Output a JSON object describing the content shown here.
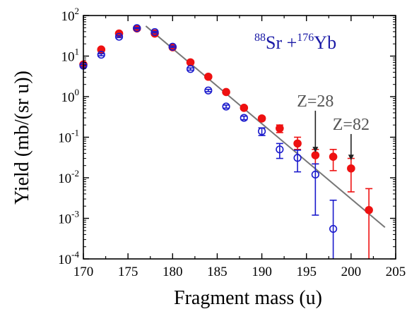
{
  "chart_data": {
    "type": "scatter",
    "xlabel": "Fragment mass (u)",
    "ylabel": "Yield (mb/(sr u))",
    "reaction": {
      "mass1": "88",
      "elem1": "Sr",
      "plus": " +",
      "mass2": "176",
      "elem2": "Yb",
      "color": "#1a1aa6"
    },
    "xlim": [
      170,
      205
    ],
    "ylim_log10": [
      -4,
      2
    ],
    "x_ticks": [
      170,
      175,
      180,
      185,
      190,
      195,
      200,
      205
    ],
    "x_tick_labels": [
      "170",
      "175",
      "180",
      "185",
      "190",
      "195",
      "200",
      "205"
    ],
    "y_ticks": [
      {
        "base": "10",
        "exp": "2",
        "value": 100
      },
      {
        "base": "10",
        "exp": "1",
        "value": 10
      },
      {
        "base": "10",
        "exp": "0",
        "value": 1
      },
      {
        "base": "10",
        "exp": "-1",
        "value": 0.1
      },
      {
        "base": "10",
        "exp": "-2",
        "value": 0.01
      },
      {
        "base": "10",
        "exp": "-3",
        "value": 0.001
      },
      {
        "base": "10",
        "exp": "-4",
        "value": 0.0001
      }
    ],
    "series": [
      {
        "marker": "filled-circle",
        "color": "#ee1111",
        "points": [
          {
            "x": 170,
            "y": 6.2,
            "lo": 5.8,
            "hi": 6.6
          },
          {
            "x": 172,
            "y": 14.5,
            "lo": 14.0,
            "hi": 15.0
          },
          {
            "x": 174,
            "y": 36,
            "lo": 35,
            "hi": 37
          },
          {
            "x": 176,
            "y": 48,
            "lo": 47,
            "hi": 49
          },
          {
            "x": 178,
            "y": 36,
            "lo": 35,
            "hi": 37
          },
          {
            "x": 180,
            "y": 16.5,
            "lo": 16.0,
            "hi": 17.0
          },
          {
            "x": 182,
            "y": 7.0,
            "lo": 6.7,
            "hi": 7.3
          },
          {
            "x": 184,
            "y": 3.1,
            "lo": 2.95,
            "hi": 3.25
          },
          {
            "x": 186,
            "y": 1.3,
            "lo": 1.22,
            "hi": 1.38
          },
          {
            "x": 188,
            "y": 0.53,
            "lo": 0.49,
            "hi": 0.57
          },
          {
            "x": 190,
            "y": 0.29,
            "lo": 0.26,
            "hi": 0.32
          },
          {
            "x": 192,
            "y": 0.165,
            "lo": 0.13,
            "hi": 0.2
          },
          {
            "x": 194,
            "y": 0.07,
            "lo": 0.05,
            "hi": 0.1
          },
          {
            "x": 196,
            "y": 0.036,
            "lo": 0.022,
            "hi": 0.05
          },
          {
            "x": 198,
            "y": 0.033,
            "lo": 0.015,
            "hi": 0.05
          },
          {
            "x": 200,
            "y": 0.017,
            "lo": 0.0045,
            "hi": 0.03
          },
          {
            "x": 202,
            "y": 0.0016,
            "lo": 0.0001,
            "hi": 0.0054
          }
        ]
      },
      {
        "marker": "open-circle",
        "color": "#1a1acc",
        "points": [
          {
            "x": 170,
            "y": 5.8,
            "lo": 5.4,
            "hi": 6.2
          },
          {
            "x": 172,
            "y": 10.8,
            "lo": 10.2,
            "hi": 11.4
          },
          {
            "x": 174,
            "y": 30,
            "lo": 28.5,
            "hi": 31.5
          },
          {
            "x": 176,
            "y": 49,
            "lo": 47.5,
            "hi": 50.5
          },
          {
            "x": 178,
            "y": 39,
            "lo": 37.5,
            "hi": 40.5
          },
          {
            "x": 180,
            "y": 17,
            "lo": 16.3,
            "hi": 17.7
          },
          {
            "x": 182,
            "y": 4.8,
            "lo": 4.5,
            "hi": 5.1
          },
          {
            "x": 184,
            "y": 1.42,
            "lo": 1.33,
            "hi": 1.51
          },
          {
            "x": 186,
            "y": 0.57,
            "lo": 0.52,
            "hi": 0.62
          },
          {
            "x": 188,
            "y": 0.3,
            "lo": 0.27,
            "hi": 0.33
          },
          {
            "x": 190,
            "y": 0.14,
            "lo": 0.11,
            "hi": 0.17
          },
          {
            "x": 192,
            "y": 0.05,
            "lo": 0.03,
            "hi": 0.07
          },
          {
            "x": 194,
            "y": 0.031,
            "lo": 0.014,
            "hi": 0.048
          },
          {
            "x": 196,
            "y": 0.012,
            "lo": 0.0012,
            "hi": 0.022
          },
          {
            "x": 198,
            "y": 0.00055,
            "lo": 0.0001,
            "hi": 0.0028
          }
        ]
      }
    ],
    "fit_line": {
      "color": "#777777",
      "points": [
        {
          "x": 177,
          "y": 55
        },
        {
          "x": 203.8,
          "y": 0.0006
        }
      ]
    },
    "annotations": [
      {
        "label": "Z=28",
        "arrow_x": 196,
        "arrow_top": 0.45,
        "arrow_bottom": 0.042
      },
      {
        "label": "Z=82",
        "arrow_x": 200,
        "arrow_top": 0.12,
        "arrow_bottom": 0.027
      }
    ]
  }
}
